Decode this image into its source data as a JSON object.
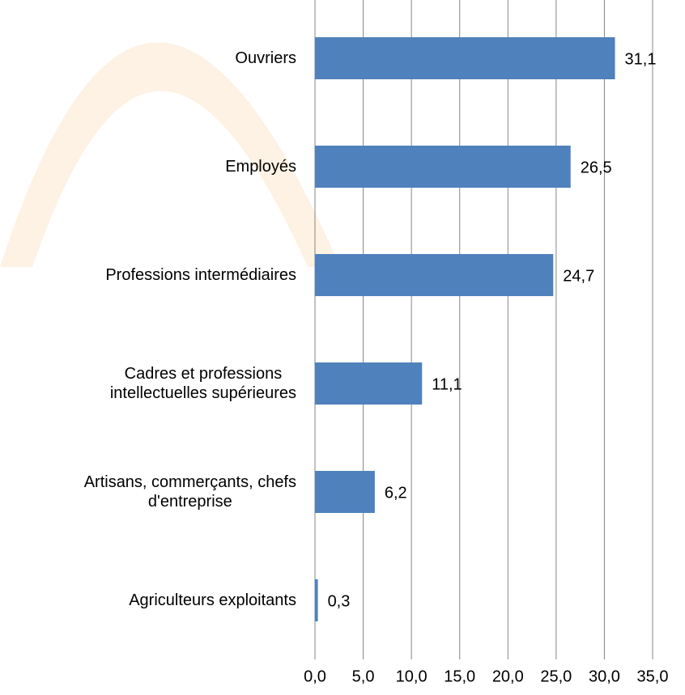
{
  "chart_data": {
    "type": "bar",
    "orientation": "horizontal",
    "categories": [
      "Ouvriers",
      "Employés",
      "Professions intermédiaires",
      "Cadres et professions\nintellectuelles supérieures",
      "Artisans, commerçants, chefs\nd'entreprise",
      "Agriculteurs exploitants"
    ],
    "values": [
      31.1,
      26.5,
      24.7,
      11.1,
      6.2,
      0.3
    ],
    "value_labels": [
      "31,1",
      "26,5",
      "24,7",
      "11,1",
      "6,2",
      "0,3"
    ],
    "color": "#4f81bd",
    "xlim": [
      0,
      35
    ],
    "xticks": [
      {
        "value": 0,
        "label": "0,0"
      },
      {
        "value": 5,
        "label": "5,0"
      },
      {
        "value": 10,
        "label": "10,0"
      },
      {
        "value": 15,
        "label": "15,0"
      },
      {
        "value": 20,
        "label": "20,0"
      },
      {
        "value": 25,
        "label": "25,0"
      },
      {
        "value": 30,
        "label": "30,0"
      },
      {
        "value": 35,
        "label": "35,0"
      }
    ],
    "grid": true
  }
}
